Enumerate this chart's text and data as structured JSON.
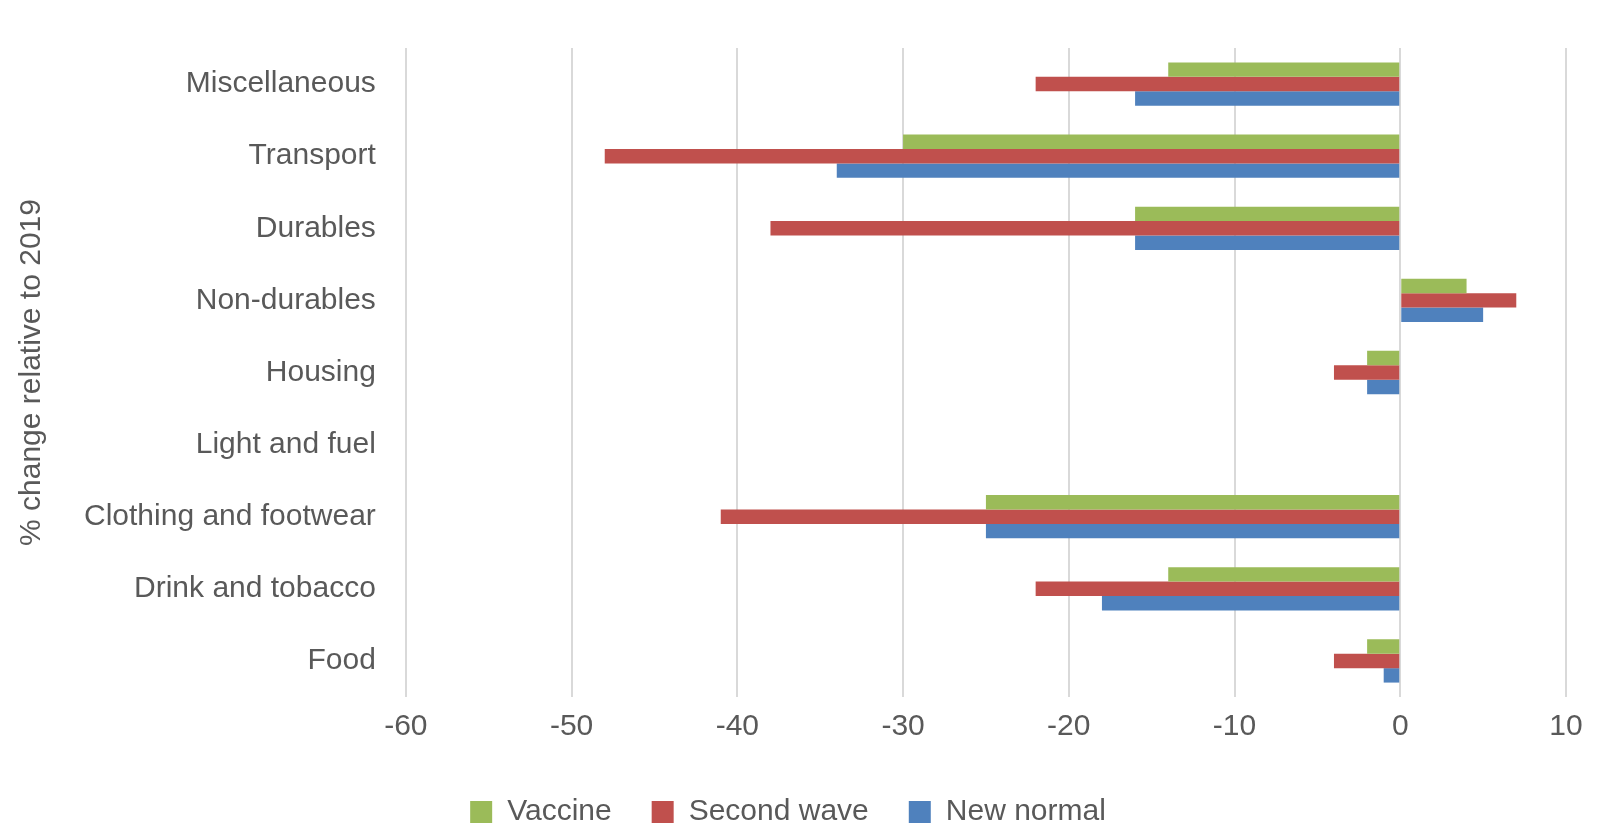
{
  "chart_data": {
    "type": "bar",
    "orientation": "horizontal",
    "ylabel": "% change relative to 2019",
    "categories": [
      "Miscellaneous",
      "Transport",
      "Durables",
      "Non-durables",
      "Housing",
      "Light and fuel",
      "Clothing and footwear",
      "Drink and tobacco",
      "Food"
    ],
    "series": [
      {
        "name": "Vaccine",
        "color": "#9bbb59",
        "values": [
          -14,
          -30,
          -16,
          4,
          -2,
          0,
          -25,
          -14,
          -2
        ]
      },
      {
        "name": "Second wave",
        "color": "#c0504d",
        "values": [
          -22,
          -48,
          -38,
          7,
          -4,
          0,
          -41,
          -22,
          -4
        ]
      },
      {
        "name": "New normal",
        "color": "#4f81bd",
        "values": [
          -16,
          -34,
          -16,
          5,
          -2,
          0,
          -25,
          -18,
          -1
        ]
      }
    ],
    "xlim": [
      -60,
      10
    ],
    "xticks": [
      -60,
      -50,
      -40,
      -30,
      -20,
      -10,
      0,
      10
    ],
    "grid": "x",
    "legend": "bottom"
  }
}
